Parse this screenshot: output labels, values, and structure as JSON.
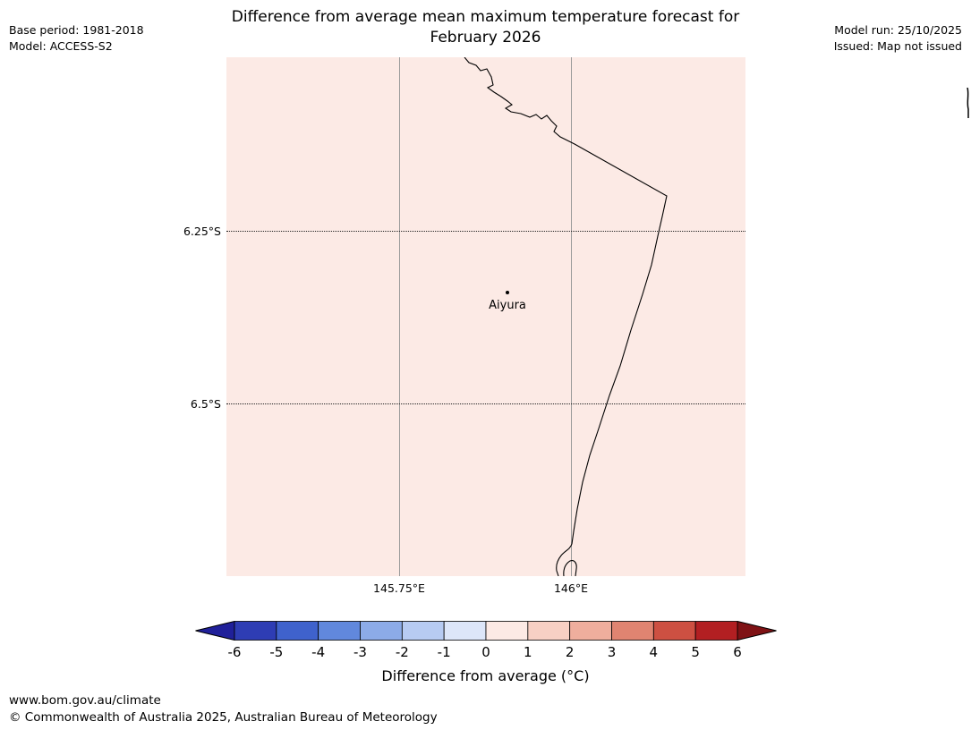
{
  "header": {
    "title_line1": "Difference from average mean maximum temperature forecast for",
    "title_line2": "February 2026",
    "base_period": "Base period: 1981-2018",
    "model": "Model: ACCESS-S2",
    "model_run": "Model run: 25/10/2025",
    "issued": "Issued: Map not issued"
  },
  "map": {
    "fill_color": "#fceae5",
    "station": {
      "name": "Aiyura"
    },
    "lat_ticks": [
      "6.25°S",
      "6.5°S"
    ],
    "lon_ticks": [
      "145.75°E",
      "146°E"
    ]
  },
  "colorbar": {
    "label": "Difference from average (°C)",
    "ticks": [
      "-6",
      "-5",
      "-4",
      "-3",
      "-2",
      "-1",
      "0",
      "1",
      "2",
      "3",
      "4",
      "5",
      "6"
    ],
    "left_arrow_color": "#20209a",
    "right_arrow_color": "#7f1215",
    "segment_colors": [
      "#2e3db4",
      "#3f62cc",
      "#6188dd",
      "#8cabe8",
      "#b7cbf2",
      "#dde6f9",
      "#fceae5",
      "#f7d0c4",
      "#efae9d",
      "#e08471",
      "#cd5042",
      "#b21f22"
    ]
  },
  "footer": {
    "url": "www.bom.gov.au/climate",
    "copyright": "© Commonwealth of Australia 2025, Australian Bureau of Meteorology"
  }
}
